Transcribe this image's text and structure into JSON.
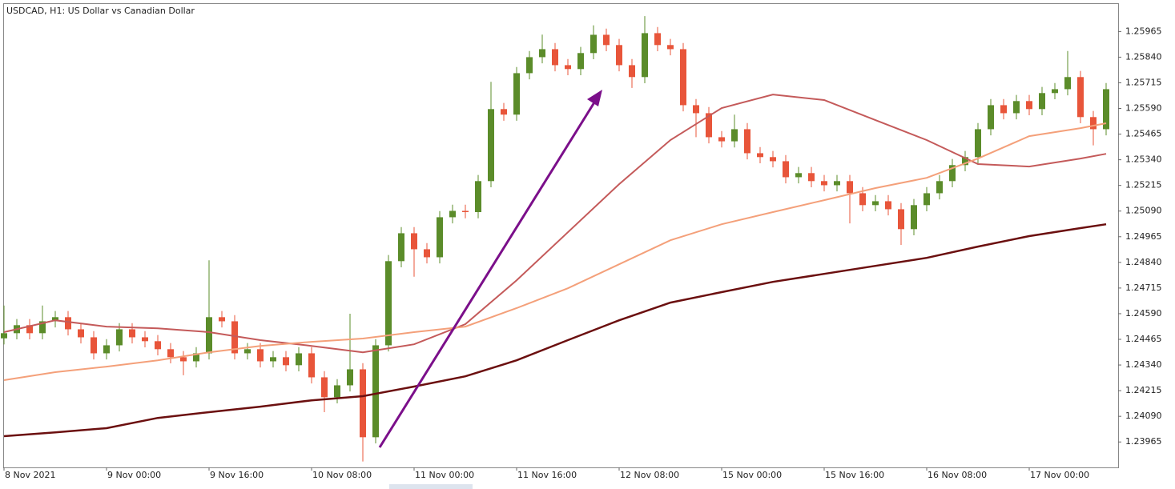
{
  "chart_data": {
    "type": "candlestick",
    "title": "USDCAD, H1:  US Dollar vs Canadian Dollar",
    "x": [
      0,
      2,
      4,
      6,
      8,
      10,
      12,
      14,
      16,
      18,
      20,
      22,
      24,
      26,
      28,
      30,
      32,
      34,
      36,
      38,
      40,
      42,
      44,
      46,
      48,
      50,
      52,
      54,
      56,
      58,
      60,
      62,
      64,
      66,
      68,
      70,
      72,
      74,
      76,
      78,
      80,
      82,
      84,
      86,
      88,
      90,
      92,
      94,
      96,
      98,
      100,
      102,
      104,
      106,
      108,
      110,
      112,
      114,
      116,
      118,
      120,
      122,
      124,
      126,
      128,
      130,
      132,
      134,
      136,
      138,
      140,
      142,
      144,
      146,
      148,
      150,
      152,
      154,
      156,
      158,
      160,
      162,
      164,
      166,
      168,
      170,
      172
    ],
    "open": [
      1.2447,
      1.24495,
      1.24534,
      1.24495,
      1.24553,
      1.24573,
      1.24514,
      1.24475,
      1.24397,
      1.24436,
      1.24514,
      1.24475,
      1.24456,
      1.24417,
      1.24378,
      1.24358,
      1.24397,
      1.24573,
      1.24553,
      1.24397,
      1.24417,
      1.24358,
      1.24378,
      1.24339,
      1.24397,
      1.2428,
      1.24183,
      1.24241,
      1.24319,
      1.23988,
      1.24436,
      1.24846,
      1.24982,
      1.24904,
      1.24865,
      1.2506,
      1.25091,
      1.25085,
      1.25236,
      1.25587,
      1.2556,
      1.25762,
      1.2584,
      1.25879,
      1.25801,
      1.25782,
      1.2586,
      1.25949,
      1.25899,
      1.25801,
      1.25743,
      1.25957,
      1.25899,
      1.25879,
      1.25606,
      1.25567,
      1.2545,
      1.2543,
      1.25489,
      1.25372,
      1.25353,
      1.25333,
      1.25255,
      1.25275,
      1.25236,
      1.25216,
      1.25236,
      1.25177,
      1.25119,
      1.25138,
      1.25099,
      1.25002,
      1.25119,
      1.25177,
      1.25236,
      1.25314,
      1.25353,
      1.25489,
      1.25606,
      1.25567,
      1.25626,
      1.25587,
      1.25665,
      1.25684,
      1.25743,
      1.25548,
      1.25489
    ],
    "high": [
      1.2463,
      1.24564,
      1.24564,
      1.2463,
      1.24603,
      1.24603,
      1.24544,
      1.24505,
      1.24466,
      1.24544,
      1.24544,
      1.24505,
      1.24486,
      1.24447,
      1.24408,
      1.24427,
      1.2485,
      1.24603,
      1.24583,
      1.24447,
      1.24447,
      1.24408,
      1.24408,
      1.24427,
      1.24427,
      1.2431,
      1.24271,
      1.2459,
      1.24349,
      1.24466,
      1.24876,
      1.25012,
      1.25012,
      1.24934,
      1.2509,
      1.25121,
      1.25121,
      1.25266,
      1.2572,
      1.25617,
      1.25792,
      1.2587,
      1.2595,
      1.25909,
      1.25831,
      1.2589,
      1.25995,
      1.25979,
      1.25929,
      1.25831,
      1.2604,
      1.25987,
      1.25929,
      1.25909,
      1.25636,
      1.25597,
      1.2548,
      1.2556,
      1.25519,
      1.25402,
      1.25383,
      1.25363,
      1.25305,
      1.25305,
      1.25266,
      1.25266,
      1.25266,
      1.25207,
      1.25168,
      1.25168,
      1.25129,
      1.25149,
      1.25207,
      1.25266,
      1.25344,
      1.25383,
      1.25519,
      1.25636,
      1.25636,
      1.25656,
      1.25656,
      1.25695,
      1.25714,
      1.2587,
      1.25773,
      1.25578,
      1.25714
    ],
    "low": [
      1.2444,
      1.24465,
      1.24465,
      1.24465,
      1.24523,
      1.24484,
      1.24445,
      1.24367,
      1.24367,
      1.24406,
      1.24445,
      1.24426,
      1.24387,
      1.24348,
      1.2429,
      1.24328,
      1.24367,
      1.24523,
      1.24367,
      1.24367,
      1.24328,
      1.24328,
      1.24309,
      1.24309,
      1.2425,
      1.2411,
      1.24153,
      1.24211,
      1.2387,
      1.23958,
      1.24406,
      1.24816,
      1.2477,
      1.24835,
      1.24835,
      1.2503,
      1.25055,
      1.25055,
      1.25206,
      1.2553,
      1.2553,
      1.25732,
      1.2581,
      1.25771,
      1.25752,
      1.25752,
      1.2583,
      1.25869,
      1.25771,
      1.2569,
      1.25713,
      1.25869,
      1.25849,
      1.25576,
      1.2545,
      1.2542,
      1.254,
      1.254,
      1.25342,
      1.25323,
      1.25303,
      1.25225,
      1.25225,
      1.25206,
      1.25186,
      1.25186,
      1.2503,
      1.25089,
      1.25089,
      1.25069,
      1.24925,
      1.24972,
      1.25089,
      1.25147,
      1.25206,
      1.25284,
      1.25323,
      1.25459,
      1.25537,
      1.25537,
      1.25557,
      1.25557,
      1.25635,
      1.25654,
      1.25518,
      1.2541,
      1.25459
    ],
    "close": [
      1.24495,
      1.24534,
      1.24495,
      1.24553,
      1.24573,
      1.24514,
      1.24475,
      1.24397,
      1.24436,
      1.24514,
      1.24475,
      1.24456,
      1.24417,
      1.24378,
      1.24358,
      1.24397,
      1.24573,
      1.24553,
      1.24397,
      1.24417,
      1.24358,
      1.24378,
      1.24339,
      1.24397,
      1.2428,
      1.24183,
      1.24241,
      1.24319,
      1.23988,
      1.24436,
      1.24846,
      1.24982,
      1.24904,
      1.24865,
      1.2506,
      1.25091,
      1.25085,
      1.25236,
      1.25587,
      1.2556,
      1.25762,
      1.2584,
      1.25879,
      1.25801,
      1.25782,
      1.2586,
      1.25949,
      1.25899,
      1.25801,
      1.25743,
      1.25957,
      1.25899,
      1.25879,
      1.25606,
      1.25567,
      1.2545,
      1.2543,
      1.25489,
      1.25372,
      1.25353,
      1.25333,
      1.25255,
      1.25275,
      1.25236,
      1.25216,
      1.25236,
      1.25177,
      1.25119,
      1.25138,
      1.25099,
      1.25002,
      1.25119,
      1.25177,
      1.25236,
      1.25314,
      1.25353,
      1.25489,
      1.25606,
      1.25567,
      1.25626,
      1.25587,
      1.25665,
      1.25684,
      1.25743,
      1.25548,
      1.25489,
      1.25684
    ],
    "up_color": "#5b8c2a",
    "down_color": "#e8553a",
    "series": [
      {
        "color": "#c45a5a",
        "x": [
          0,
          8,
          16,
          24,
          32,
          40,
          48,
          56,
          64,
          72,
          80,
          88,
          96,
          104,
          112,
          120,
          128,
          136,
          144,
          152,
          160,
          168,
          172
        ],
        "values": [
          1.245,
          1.24558,
          1.24527,
          1.24519,
          1.245,
          1.24461,
          1.24433,
          1.24402,
          1.24441,
          1.24539,
          1.24753,
          1.24987,
          1.25221,
          1.25436,
          1.25592,
          1.25658,
          1.25631,
          1.25533,
          1.25436,
          1.25319,
          1.25307,
          1.25346,
          1.25369
        ]
      },
      {
        "color": "#f4a07a",
        "x": [
          0,
          8,
          16,
          24,
          32,
          40,
          48,
          56,
          64,
          72,
          80,
          88,
          96,
          104,
          112,
          120,
          128,
          136,
          144,
          152,
          160,
          168,
          172
        ],
        "values": [
          1.24266,
          1.24305,
          1.24332,
          1.24363,
          1.24402,
          1.24433,
          1.24453,
          1.24469,
          1.245,
          1.24527,
          1.24617,
          1.24714,
          1.24831,
          1.24948,
          1.25026,
          1.25085,
          1.25143,
          1.25202,
          1.25252,
          1.25346,
          1.25455,
          1.25494,
          1.25518
        ]
      },
      {
        "color": "#6b0f0f",
        "x": [
          0,
          8,
          16,
          24,
          32,
          40,
          48,
          56,
          64,
          72,
          80,
          88,
          96,
          104,
          112,
          120,
          128,
          136,
          144,
          152,
          160,
          168,
          172
        ],
        "values": [
          1.23993,
          1.24012,
          1.24032,
          1.24082,
          1.2411,
          1.24137,
          1.24168,
          1.24188,
          1.24235,
          1.24285,
          1.24363,
          1.24461,
          1.24558,
          1.24644,
          1.24695,
          1.24745,
          1.24784,
          1.24823,
          1.24862,
          1.24917,
          1.24968,
          1.25007,
          1.25026
        ]
      }
    ],
    "xlim": [
      0,
      174
    ],
    "ylim": [
      1.23845,
      1.26099
    ],
    "xticks": [
      {
        "value": 0,
        "label": "8 Nov 2021"
      },
      {
        "value": 16,
        "label": "9 Nov 00:00"
      },
      {
        "value": 32,
        "label": "9 Nov 16:00"
      },
      {
        "value": 48,
        "label": "10 Nov 08:00"
      },
      {
        "value": 64,
        "label": "11 Nov 00:00"
      },
      {
        "value": 80,
        "label": "11 Nov 16:00"
      },
      {
        "value": 96,
        "label": "12 Nov 08:00"
      },
      {
        "value": 112,
        "label": "15 Nov 00:00"
      },
      {
        "value": 128,
        "label": "15 Nov 16:00"
      },
      {
        "value": 144,
        "label": "16 Nov 08:00"
      },
      {
        "value": 160,
        "label": "17 Nov 00:00"
      }
    ],
    "yticks": [
      1.23965,
      {
        "value": 1.2409,
        "label": "1.24090"
      },
      1.24215,
      {
        "value": 1.2434,
        "label": "1.24340"
      },
      1.24465,
      {
        "value": 1.2459,
        "label": "1.24590"
      },
      1.24715,
      {
        "value": 1.2484,
        "label": "1.24840"
      },
      1.24965,
      {
        "value": 1.2509,
        "label": "1.25090"
      },
      1.25215,
      {
        "value": 1.2534,
        "label": "1.25340"
      },
      1.25465,
      {
        "value": 1.2559,
        "label": "1.25590"
      },
      1.25715,
      {
        "value": 1.2584,
        "label": "1.25840"
      },
      1.25965
    ]
  }
}
